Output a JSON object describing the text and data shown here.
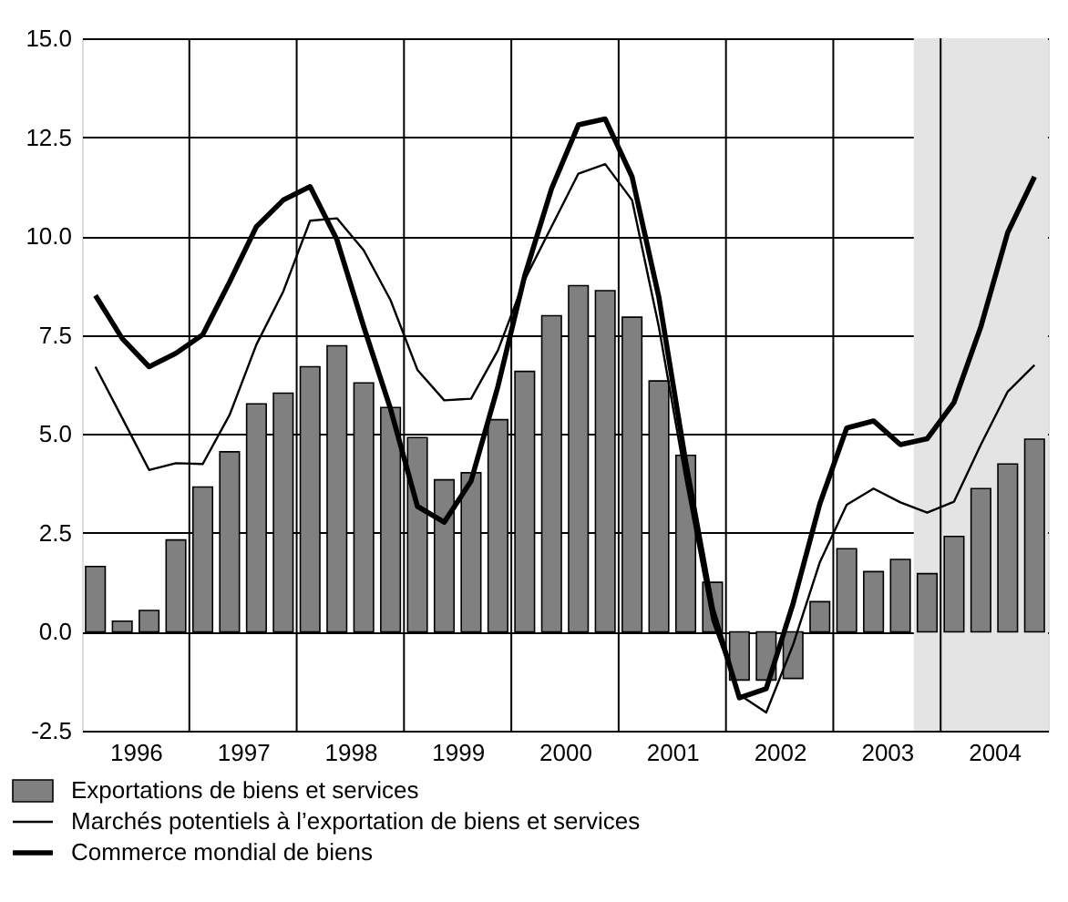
{
  "chart_data": {
    "type": "bar",
    "legend": "bottom",
    "grid": true,
    "x": [
      1996.125,
      1996.375,
      1996.625,
      1996.875,
      1997.125,
      1997.375,
      1997.625,
      1997.875,
      1998.125,
      1998.375,
      1998.625,
      1998.875,
      1999.125,
      1999.375,
      1999.625,
      1999.875,
      2000.125,
      2000.375,
      2000.625,
      2000.875,
      2001.125,
      2001.375,
      2001.625,
      2001.875,
      2002.125,
      2002.375,
      2002.625,
      2002.875,
      2003.125,
      2003.375,
      2003.625,
      2003.875,
      2004.125,
      2004.375,
      2004.625,
      2004.875
    ],
    "xlim": [
      1996,
      2005
    ],
    "xticks": [
      {
        "value": 1996.5,
        "label": "1996"
      },
      {
        "value": 1997.5,
        "label": "1997"
      },
      {
        "value": 1998.5,
        "label": "1998"
      },
      {
        "value": 1999.5,
        "label": "1999"
      },
      {
        "value": 2000.5,
        "label": "2000"
      },
      {
        "value": 2001.5,
        "label": "2001"
      },
      {
        "value": 2002.5,
        "label": "2002"
      },
      {
        "value": 2003.5,
        "label": "2003"
      },
      {
        "value": 2004.5,
        "label": "2004"
      },
      {
        "value": 1997,
        "label": null
      },
      {
        "value": 1998,
        "label": null
      },
      {
        "value": 1999,
        "label": null
      },
      {
        "value": 2000,
        "label": null
      },
      {
        "value": 2001,
        "label": null
      },
      {
        "value": 2002,
        "label": null
      },
      {
        "value": 2003,
        "label": null
      },
      {
        "value": 2004,
        "label": null
      }
    ],
    "ylim": [
      -2.5,
      15
    ],
    "yticks": [
      {
        "value": -2.5,
        "label": "-2.5"
      },
      {
        "value": 0,
        "label": "0.0"
      },
      {
        "value": 2.5,
        "label": "2.5"
      },
      {
        "value": 5,
        "label": "5.0"
      },
      {
        "value": 7.5,
        "label": "7.5"
      },
      {
        "value": 10,
        "label": "10.0"
      },
      {
        "value": 12.5,
        "label": "12.5"
      },
      {
        "value": 15,
        "label": "15.0"
      }
    ],
    "bands": [
      {
        "axis": "x",
        "from": 2003.75,
        "to": 2005,
        "color": "#e4e4e4"
      }
    ],
    "series": [
      {
        "name": "Exportations de biens et services",
        "color": "#808080",
        "values": [
          1.65,
          0.27,
          0.54,
          2.32,
          3.66,
          4.55,
          5.76,
          6.03,
          6.7,
          7.23,
          6.29,
          5.67,
          4.91,
          3.84,
          4.02,
          5.36,
          6.58,
          7.99,
          8.75,
          8.62,
          7.95,
          6.34,
          4.46,
          1.25,
          -1.22,
          -1.22,
          -1.18,
          0.76,
          2.1,
          1.52,
          1.83,
          1.47,
          2.41,
          3.62,
          4.24,
          4.87
        ]
      },
      {
        "name": "Marchés potentiels à l’exportation de biens et services",
        "type": "line",
        "color": "#000000",
        "values": [
          6.7,
          5.4,
          4.09,
          4.26,
          4.24,
          5.48,
          7.26,
          8.6,
          10.39,
          10.45,
          9.64,
          8.38,
          6.62,
          5.85,
          5.89,
          7.11,
          8.9,
          10.24,
          11.58,
          11.82,
          10.91,
          7.7,
          3.84,
          0.27,
          -1.59,
          -2.04,
          -0.33,
          1.76,
          3.21,
          3.62,
          3.27,
          3.01,
          3.29,
          4.73,
          6.07,
          6.74
        ]
      },
      {
        "name": "Commerce mondial de biens",
        "type": "line",
        "color": "#000000",
        "values": [
          8.5,
          7.41,
          6.7,
          7.04,
          7.51,
          8.84,
          10.24,
          10.91,
          11.25,
          9.91,
          7.71,
          5.63,
          3.17,
          2.77,
          3.81,
          6.2,
          9.0,
          11.2,
          12.81,
          12.96,
          11.5,
          8.45,
          4.29,
          0.57,
          -1.67,
          -1.44,
          0.71,
          3.24,
          5.15,
          5.33,
          4.73,
          4.88,
          5.8,
          7.71,
          10.09,
          11.5
        ]
      }
    ]
  }
}
